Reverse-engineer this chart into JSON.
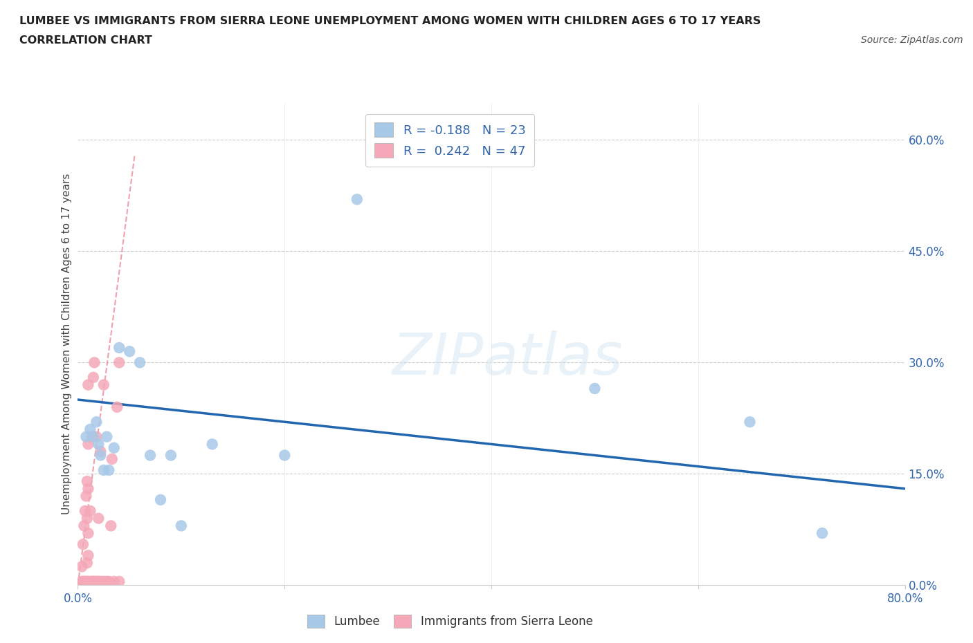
{
  "title_line1": "LUMBEE VS IMMIGRANTS FROM SIERRA LEONE UNEMPLOYMENT AMONG WOMEN WITH CHILDREN AGES 6 TO 17 YEARS",
  "title_line2": "CORRELATION CHART",
  "source": "Source: ZipAtlas.com",
  "ylabel": "Unemployment Among Women with Children Ages 6 to 17 years",
  "xlim": [
    0.0,
    0.8
  ],
  "ylim": [
    0.0,
    0.65
  ],
  "xticks": [
    0.0,
    0.2,
    0.4,
    0.6,
    0.8
  ],
  "xtick_labels": [
    "0.0%",
    "",
    "",
    "",
    "80.0%"
  ],
  "ytick_labels_right": [
    "60.0%",
    "45.0%",
    "30.0%",
    "15.0%",
    "0.0%"
  ],
  "ytick_positions_right": [
    0.6,
    0.45,
    0.3,
    0.15,
    0.0
  ],
  "watermark": "ZIPatlas",
  "lumbee_color": "#a8c8e8",
  "sierra_leone_color": "#f4a8b8",
  "lumbee_line_color": "#2266b0",
  "sierra_leone_line_color": "#e87a8a",
  "legend_r_lumbee": "-0.188",
  "legend_n_lumbee": "23",
  "legend_r_sierra": "0.242",
  "legend_n_sierra": "47",
  "lumbee_points_x": [
    0.008,
    0.012,
    0.015,
    0.018,
    0.02,
    0.022,
    0.025,
    0.028,
    0.03,
    0.035,
    0.04,
    0.05,
    0.06,
    0.07,
    0.08,
    0.09,
    0.1,
    0.13,
    0.2,
    0.27,
    0.5,
    0.65,
    0.72
  ],
  "lumbee_points_y": [
    0.2,
    0.21,
    0.2,
    0.22,
    0.19,
    0.175,
    0.155,
    0.2,
    0.155,
    0.185,
    0.32,
    0.315,
    0.3,
    0.175,
    0.115,
    0.175,
    0.08,
    0.19,
    0.175,
    0.52,
    0.265,
    0.22,
    0.07
  ],
  "sierra_leone_points_x": [
    0.004,
    0.004,
    0.005,
    0.005,
    0.006,
    0.006,
    0.007,
    0.007,
    0.008,
    0.008,
    0.009,
    0.009,
    0.009,
    0.009,
    0.01,
    0.01,
    0.01,
    0.01,
    0.01,
    0.01,
    0.012,
    0.012,
    0.013,
    0.014,
    0.014,
    0.015,
    0.015,
    0.016,
    0.016,
    0.018,
    0.018,
    0.019,
    0.02,
    0.02,
    0.022,
    0.022,
    0.024,
    0.025,
    0.026,
    0.028,
    0.03,
    0.032,
    0.033,
    0.035,
    0.038,
    0.04,
    0.04
  ],
  "sierra_leone_points_y": [
    0.005,
    0.025,
    0.005,
    0.055,
    0.005,
    0.08,
    0.005,
    0.1,
    0.005,
    0.12,
    0.005,
    0.03,
    0.09,
    0.14,
    0.005,
    0.04,
    0.07,
    0.13,
    0.19,
    0.27,
    0.005,
    0.1,
    0.005,
    0.005,
    0.2,
    0.005,
    0.28,
    0.005,
    0.3,
    0.005,
    0.2,
    0.005,
    0.005,
    0.09,
    0.005,
    0.18,
    0.005,
    0.27,
    0.005,
    0.005,
    0.005,
    0.08,
    0.17,
    0.005,
    0.24,
    0.005,
    0.3
  ],
  "lumbee_trend_x": [
    0.0,
    0.8
  ],
  "lumbee_trend_y": [
    0.25,
    0.13
  ],
  "sierra_leone_trend_x": [
    0.0,
    0.055
  ],
  "sierra_leone_trend_y": [
    0.0,
    0.58
  ]
}
